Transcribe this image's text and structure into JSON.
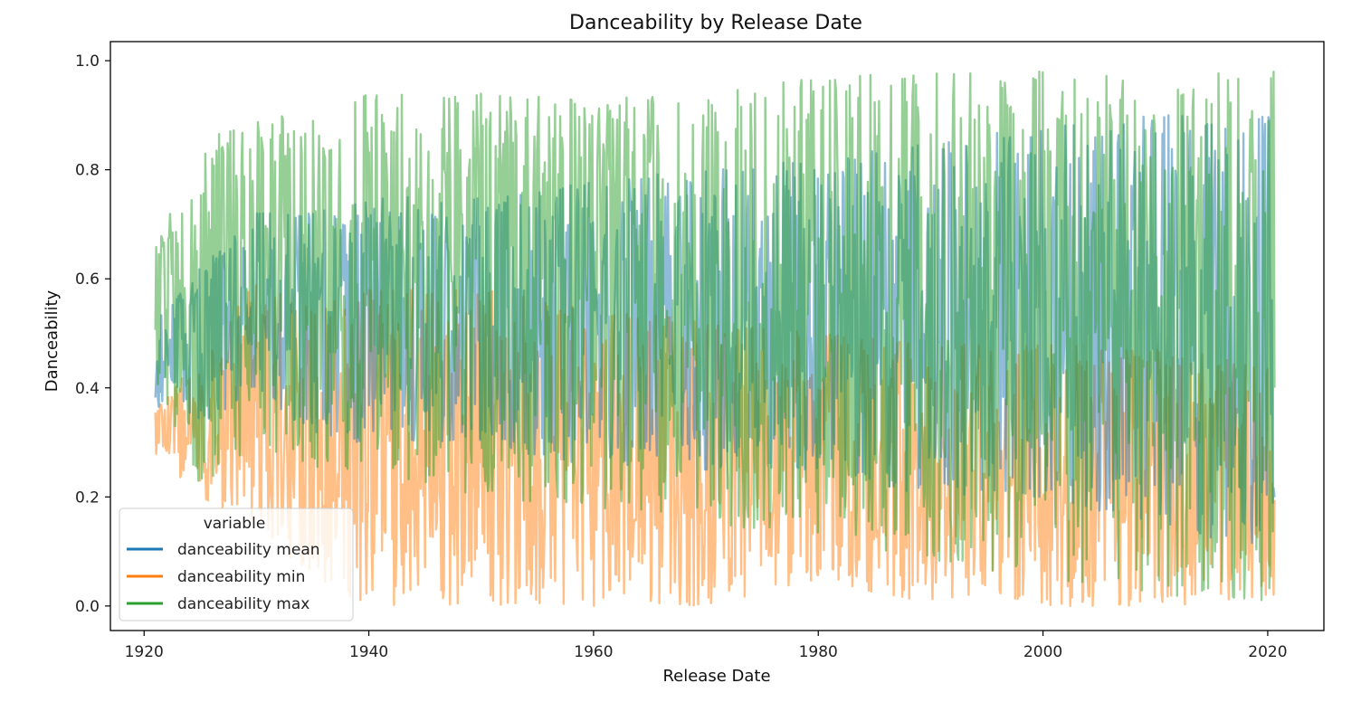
{
  "chart_data": {
    "type": "line",
    "title": "Danceability by Release Date",
    "xlabel": "Release Date",
    "ylabel": "Danceability",
    "xlim": [
      1917,
      2025
    ],
    "ylim": [
      -0.045,
      1.035
    ],
    "x_ticks": [
      1920,
      1940,
      1960,
      1980,
      2000,
      2020
    ],
    "y_ticks": [
      "0.0",
      "0.2",
      "0.4",
      "0.6",
      "0.8",
      "1.0"
    ],
    "grid": false,
    "legend": {
      "title": "variable",
      "placement": "lower-left",
      "entries": [
        "danceability mean",
        "danceability min",
        "danceability max"
      ]
    },
    "colors": {
      "danceability mean": "#1f77b4",
      "danceability min": "#ff7f0e",
      "danceability max": "#2ca02c"
    },
    "series_alpha": 0.5,
    "x_range": [
      1921,
      2020.6
    ],
    "series": [
      {
        "name": "danceability min",
        "envelope_by_decade": {
          "x": [
            1921,
            1925,
            1930,
            1935,
            1940,
            1950,
            1960,
            1970,
            1980,
            1990,
            2000,
            2010,
            2020
          ],
          "low": [
            0.28,
            0.2,
            0.15,
            0.05,
            0.0,
            0.0,
            0.0,
            0.0,
            0.05,
            0.0,
            0.0,
            0.0,
            0.0
          ],
          "high": [
            0.37,
            0.45,
            0.6,
            0.55,
            0.58,
            0.58,
            0.55,
            0.52,
            0.5,
            0.48,
            0.48,
            0.47,
            0.45
          ]
        }
      },
      {
        "name": "danceability mean",
        "envelope_by_decade": {
          "x": [
            1921,
            1925,
            1930,
            1935,
            1940,
            1950,
            1960,
            1970,
            1980,
            1990,
            2000,
            2010,
            2020
          ],
          "low": [
            0.36,
            0.3,
            0.4,
            0.3,
            0.3,
            0.3,
            0.25,
            0.25,
            0.25,
            0.2,
            0.2,
            0.15,
            0.1
          ],
          "high": [
            0.52,
            0.62,
            0.72,
            0.72,
            0.75,
            0.75,
            0.78,
            0.8,
            0.82,
            0.85,
            0.88,
            0.9,
            0.9
          ]
        }
      },
      {
        "name": "danceability max",
        "envelope_by_decade": {
          "x": [
            1921,
            1925,
            1930,
            1935,
            1940,
            1950,
            1960,
            1970,
            1980,
            1990,
            2000,
            2010,
            2020
          ],
          "low": [
            0.4,
            0.22,
            0.3,
            0.25,
            0.25,
            0.2,
            0.18,
            0.15,
            0.12,
            0.08,
            0.05,
            0.02,
            0.0
          ],
          "high": [
            0.66,
            0.85,
            0.9,
            0.9,
            0.95,
            0.94,
            0.93,
            0.94,
            0.97,
            0.98,
            0.98,
            0.98,
            0.98
          ]
        }
      }
    ]
  }
}
